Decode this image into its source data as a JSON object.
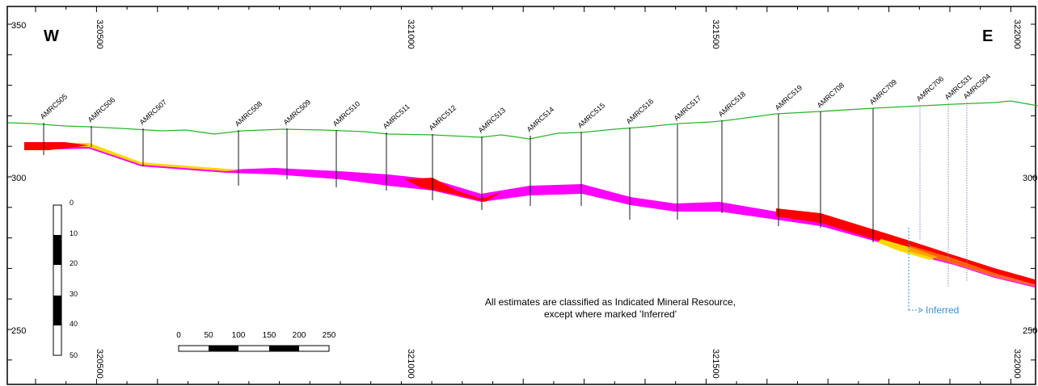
{
  "orientation": {
    "west": "W",
    "east": "E"
  },
  "elevation_labels": [
    "350",
    "300",
    "250"
  ],
  "elevation_labels_right": [
    "300",
    "250"
  ],
  "easting_labels": [
    "320500",
    "321000",
    "321500",
    "322000"
  ],
  "drillholes": [
    "AMRC505",
    "AMRC506",
    "AMRC507",
    "AMRC508",
    "AMRC509",
    "AMRC510",
    "AMRC511",
    "AMRC512",
    "AMRC513",
    "AMRC514",
    "AMRC515",
    "AMRC516",
    "AMRC517",
    "AMRC518",
    "AMRC519",
    "AMRC708",
    "AMRC709",
    "AMRC706",
    "AMRC531",
    "AMRC504"
  ],
  "note": {
    "line1": "All estimates are classified as Indicated Mineral Resource,",
    "line2": "except where marked 'Inferred'"
  },
  "inferred_label": "Inferred",
  "vertical_scale": {
    "labels": [
      "0",
      "10",
      "20",
      "30",
      "40",
      "50"
    ]
  },
  "horizontal_scale": {
    "labels": [
      "0",
      "50",
      "100",
      "150",
      "200",
      "250"
    ]
  },
  "colors": {
    "topography": "#2db32d",
    "grade_high": "#ff00ff",
    "grade_mid": "#ff0000",
    "grade_low": "#ff8c00",
    "grade_lowest": "#ffd700",
    "inferred": "#3a8fd8"
  }
}
